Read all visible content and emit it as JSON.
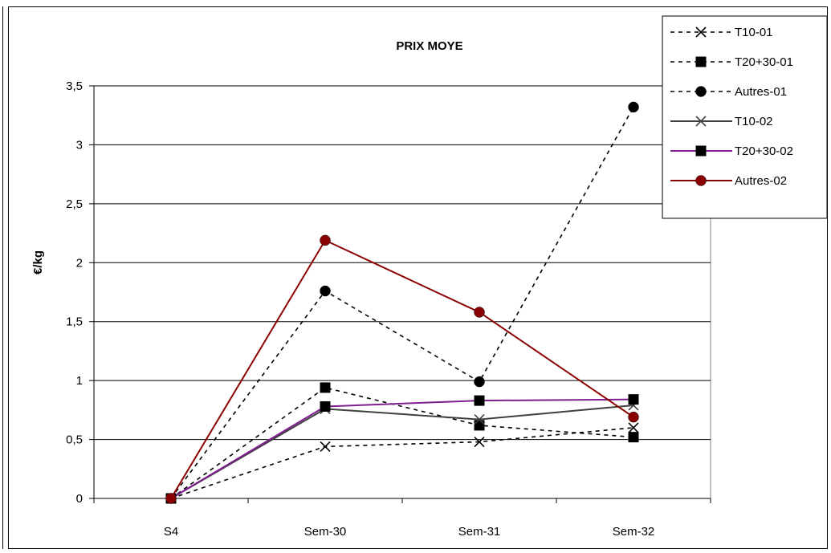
{
  "chart_data": {
    "type": "line",
    "title": "PRIX MOYE",
    "xlabel": "",
    "ylabel": "€/kg",
    "categories": [
      "S4",
      "Sem-30",
      "Sem-31",
      "Sem-32"
    ],
    "ylim": [
      0,
      3.5
    ],
    "yticks": [
      "0",
      "0,5",
      "1",
      "1,5",
      "2",
      "2,5",
      "3",
      "3,5"
    ],
    "grid": true,
    "legend_position": "top-right",
    "series": [
      {
        "name": "T10-01",
        "values": [
          0,
          0.44,
          0.48,
          0.6
        ],
        "color": "#000000",
        "dash": "dashed",
        "marker": "x"
      },
      {
        "name": "T20+30-01",
        "values": [
          0,
          0.94,
          0.62,
          0.52
        ],
        "color": "#000000",
        "dash": "dashed",
        "marker": "square"
      },
      {
        "name": "Autres-01",
        "values": [
          0,
          1.76,
          0.99,
          3.32
        ],
        "color": "#000000",
        "dash": "dashed",
        "marker": "circle"
      },
      {
        "name": "T10-02",
        "values": [
          0,
          0.76,
          0.67,
          0.79
        ],
        "color": "#404040",
        "dash": "solid",
        "marker": "x"
      },
      {
        "name": "T20+30-02",
        "values": [
          0,
          0.78,
          0.83,
          0.84
        ],
        "color": "#7f1f8f",
        "dash": "solid",
        "marker": "square"
      },
      {
        "name": "Autres-02",
        "values": [
          0,
          2.19,
          1.58,
          0.69
        ],
        "color": "#8b0000",
        "dash": "solid",
        "marker": "circle"
      }
    ]
  }
}
